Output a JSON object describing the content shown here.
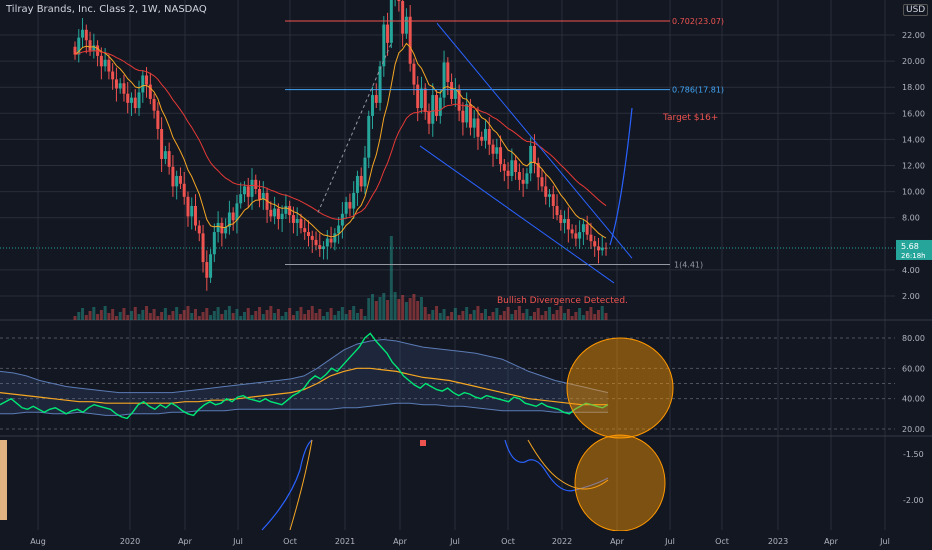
{
  "header": {
    "symbol_line": "Tilray Brands, Inc. Class 2, 1W, NASDAQ",
    "currency": "USD"
  },
  "colors": {
    "background": "#131722",
    "up": "#26a69a",
    "down": "#ef5350",
    "bright_up": "#00e676",
    "ema_fast": "#f5a623",
    "ema_slow": "#e53935",
    "fib_red": "#ef5350",
    "fib_blue": "#42a5f5",
    "channel": "#2962ff",
    "circle_fill": "#ff9800",
    "grid": "#2a2e39"
  },
  "chart_data": {
    "type": "candlestick",
    "x_axis_labels": [
      "Aug",
      "2020",
      "Apr",
      "Jul",
      "Oct",
      "2021",
      "Apr",
      "Jul",
      "Oct",
      "2022",
      "Apr",
      "Jul",
      "Oct",
      "2023",
      "Apr",
      "Jul"
    ],
    "price_axis": {
      "ticks": [
        "22.00",
        "20.00",
        "18.00",
        "16.00",
        "14.00",
        "12.00",
        "10.00",
        "8.00",
        "4.00",
        "2.00"
      ],
      "ylim": [
        1,
        24
      ]
    },
    "last_price": {
      "value": "5.68",
      "countdown": "26:18h"
    },
    "weekly_closes": [
      20.5,
      21.8,
      22.4,
      21.6,
      20.8,
      21.2,
      20.4,
      19.6,
      20.1,
      19.2,
      18.6,
      17.9,
      18.3,
      17.5,
      16.8,
      17.2,
      16.4,
      17.6,
      18.9,
      18.2,
      17.1,
      16.2,
      14.8,
      12.5,
      13.1,
      11.9,
      10.4,
      11.2,
      10.6,
      9.6,
      8.1,
      8.9,
      7.4,
      6.8,
      4.6,
      3.4,
      5.2,
      6.9,
      7.6,
      6.8,
      7.3,
      8.4,
      7.8,
      9.1,
      9.8,
      10.4,
      9.6,
      10.9,
      10.2,
      9.4,
      9.9,
      8.6,
      8.1,
      8.7,
      7.9,
      8.3,
      8.9,
      8.2,
      7.6,
      7.9,
      7.2,
      6.9,
      6.6,
      6.3,
      5.9,
      5.6,
      5.8,
      6.4,
      6.1,
      6.8,
      7.4,
      8.3,
      9.2,
      8.7,
      9.9,
      11.2,
      10.4,
      12.6,
      15.8,
      17.4,
      16.8,
      19.6,
      22.8,
      21.4,
      24.8,
      26.9,
      24.6,
      22.1,
      23.4,
      19.8,
      18.2,
      16.4,
      17.9,
      16.1,
      15.2,
      17.4,
      15.8,
      17.2,
      19.9,
      18.4,
      17.1,
      17.8,
      16.2,
      15.3,
      16.7,
      14.9,
      15.6,
      14.2,
      13.9,
      14.8,
      13.6,
      12.9,
      13.4,
      12.1,
      11.6,
      11.2,
      12.4,
      11.5,
      10.9,
      10.6,
      11.4,
      13.5,
      12.2,
      11.1,
      10.4,
      9.6,
      9.8,
      8.9,
      8.2,
      7.6,
      7.9,
      7.1,
      6.8,
      6.4,
      6.9,
      7.5,
      6.7,
      6.2,
      5.8,
      5.5,
      5.7,
      5.68
    ],
    "fib_levels": [
      {
        "label": "0.702(23.07)",
        "value": 23.07
      },
      {
        "label": "0.786(17.81)",
        "value": 17.81
      },
      {
        "label": "1(4.41)",
        "value": 4.41
      }
    ],
    "annotations": [
      "Target $16+",
      "Bullish Divergence Detected."
    ],
    "rsi_panel": {
      "ticks": [
        "80.00",
        "60.00",
        "40.00",
        "20.00"
      ],
      "ylim": [
        15,
        85
      ],
      "rsi_values": [
        36,
        38,
        40,
        37,
        34,
        33,
        35,
        33,
        31,
        33,
        34,
        32,
        30,
        32,
        33,
        31,
        34,
        36,
        35,
        34,
        33,
        30,
        28,
        27,
        31,
        36,
        38,
        35,
        33,
        36,
        34,
        37,
        35,
        32,
        30,
        29,
        33,
        36,
        38,
        36,
        37,
        40,
        38,
        41,
        42,
        40,
        39,
        38,
        40,
        38,
        37,
        36,
        39,
        42,
        44,
        47,
        52,
        55,
        53,
        56,
        60,
        58,
        62,
        66,
        70,
        74,
        80,
        83,
        78,
        74,
        70,
        64,
        60,
        55,
        52,
        49,
        47,
        50,
        48,
        46,
        45,
        47,
        44,
        42,
        44,
        43,
        41,
        40,
        42,
        41,
        40,
        39,
        38,
        41,
        40,
        37,
        36,
        35,
        37,
        35,
        34,
        33,
        31,
        30,
        33,
        35,
        37,
        36,
        35,
        34,
        36
      ],
      "upper_band_values": [
        58,
        57,
        55,
        52,
        50,
        48,
        47,
        46,
        45,
        44,
        44,
        44,
        44,
        44,
        45,
        46,
        47,
        48,
        49,
        50,
        51,
        52,
        53,
        55,
        60,
        66,
        72,
        76,
        78,
        79,
        78,
        76,
        74,
        73,
        72,
        71,
        70,
        68,
        66,
        62,
        58,
        55,
        52,
        50,
        48,
        46,
        44
      ],
      "lower_band_values": [
        30,
        30,
        31,
        31,
        30,
        30,
        31,
        30,
        29,
        29,
        30,
        30,
        30,
        31,
        31,
        32,
        32,
        32,
        33,
        33,
        33,
        33,
        33,
        33,
        33,
        33,
        34,
        34,
        35,
        36,
        37,
        37,
        36,
        36,
        35,
        35,
        34,
        33,
        32,
        32,
        32,
        32,
        31,
        31,
        31,
        31,
        31
      ],
      "basis_values": [
        44,
        43,
        42,
        41,
        40,
        39,
        38,
        38,
        37,
        37,
        37,
        37,
        37,
        37,
        38,
        38,
        39,
        39,
        40,
        41,
        42,
        43,
        44,
        46,
        50,
        55,
        58,
        60,
        60,
        59,
        58,
        56,
        54,
        53,
        52,
        50,
        48,
        46,
        44,
        42,
        40,
        39,
        38,
        37,
        36,
        36,
        36
      ]
    },
    "oscillator_panel": {
      "ticks": [
        "-1.50",
        "-2.00"
      ]
    }
  }
}
